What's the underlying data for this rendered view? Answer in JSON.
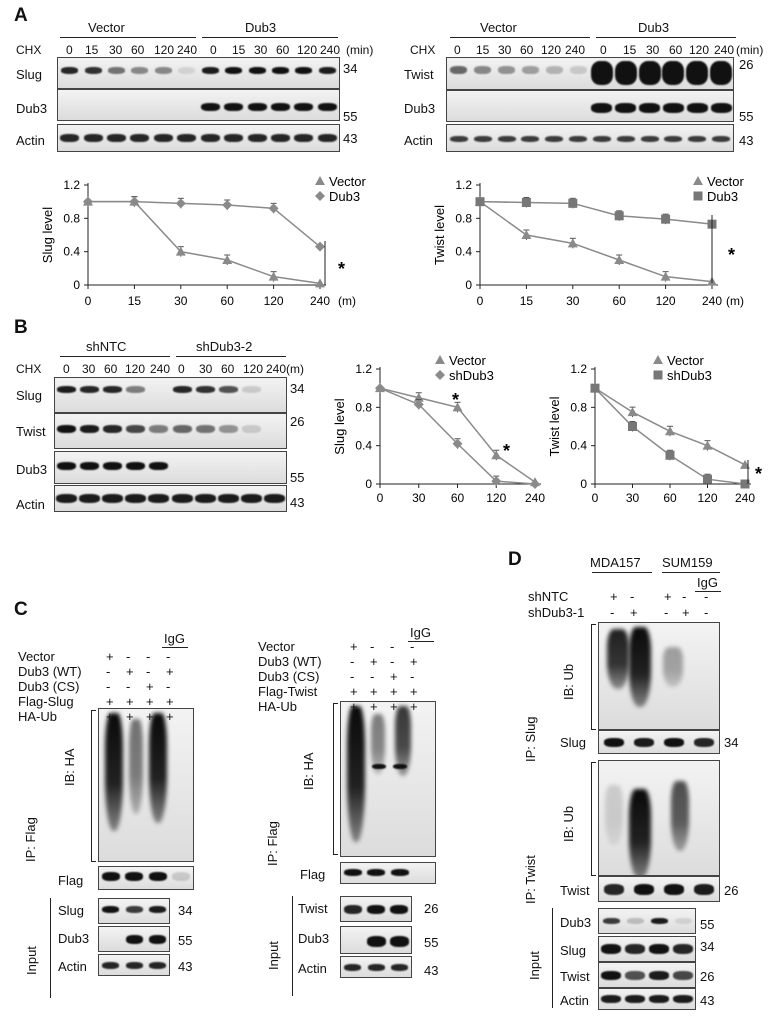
{
  "panel_labels": {
    "a": "A",
    "b": "B",
    "c": "C",
    "d": "D"
  },
  "common": {
    "chx": "CHX",
    "min": "(min)",
    "m": "(m)",
    "m_axis": "(m)",
    "star": "*",
    "mw34": "34",
    "mw26": "26",
    "mw55": "55",
    "mw43": "43",
    "vector": "Vector",
    "dub3": "Dub3",
    "shNTC": "shNTC",
    "shDub3_2": "shDub3-2",
    "plus": "+",
    "minus": "-",
    "igg": "IgG"
  },
  "panelA": {
    "times": [
      "0",
      "15",
      "30",
      "60",
      "120",
      "240"
    ],
    "left_rows": [
      "Slug",
      "Dub3",
      "Actin"
    ],
    "right_rows": [
      "Twist",
      "Dub3",
      "Actin"
    ]
  },
  "panelB": {
    "times": [
      "0",
      "30",
      "60",
      "120",
      "240"
    ],
    "rows": [
      "Slug",
      "Twist",
      "Dub3",
      "Actin"
    ]
  },
  "panelC": {
    "left": {
      "conds": [
        "Vector",
        "Dub3 (WT)",
        "Dub3 (CS)",
        "Flag-Slug",
        "HA-Ub"
      ],
      "signs": [
        [
          "+",
          "-",
          "-",
          "-"
        ],
        [
          "-",
          "+",
          "-",
          "+"
        ],
        [
          "-",
          "-",
          "+",
          "-"
        ],
        [
          "+",
          "+",
          "+",
          "+"
        ],
        [
          "+",
          "+",
          "+",
          "+"
        ]
      ],
      "ib": "IB: HA",
      "ip": "IP: Flag",
      "flag": "Flag",
      "input": "Input",
      "inrows": [
        "Slug",
        "Dub3",
        "Actin"
      ]
    },
    "right": {
      "conds": [
        "Vector",
        "Dub3 (WT)",
        "Dub3 (CS)",
        "Flag-Twist",
        "HA-Ub"
      ],
      "signs": [
        [
          "+",
          "-",
          "-",
          "-"
        ],
        [
          "-",
          "+",
          "-",
          "+"
        ],
        [
          "-",
          "-",
          "+",
          "-"
        ],
        [
          "+",
          "+",
          "+",
          "+"
        ],
        [
          "+",
          "+",
          "+",
          "+"
        ]
      ],
      "ib": "IB: HA",
      "ip": "IP: Flag",
      "flag": "Flag",
      "input": "Input",
      "inrows": [
        "Twist",
        "Dub3",
        "Actin"
      ]
    }
  },
  "panelD": {
    "lines": [
      "MDA157",
      "SUM159"
    ],
    "shNTC": "shNTC",
    "shDub3_1": "shDub3-1",
    "signs": [
      [
        "+",
        "-",
        "+",
        "-"
      ],
      [
        "-",
        "+",
        "-",
        "+"
      ]
    ],
    "ip_slug": "IP: Slug",
    "ip_twist": "IP: Twist",
    "ib": "IB: Ub",
    "slug": "Slug",
    "twist": "Twist",
    "input": "Input",
    "inrows": [
      "Dub3",
      "Slug",
      "Twist",
      "Actin"
    ]
  },
  "chart_data": [
    {
      "type": "line",
      "ylabel": "Slug level",
      "categories": [
        "0",
        "15",
        "30",
        "60",
        "120",
        "240"
      ],
      "x_unit": "(m)",
      "yticks": [
        "0",
        "0.4",
        "0.8",
        "1.2"
      ],
      "ylim": [
        0,
        1.2
      ],
      "series": [
        {
          "name": "Vector",
          "marker": "triangle",
          "values": [
            1.0,
            1.0,
            0.4,
            0.3,
            0.1,
            0.02
          ]
        },
        {
          "name": "Dub3",
          "marker": "diamond",
          "values": [
            1.0,
            1.0,
            0.98,
            0.96,
            0.92,
            0.46
          ]
        }
      ]
    },
    {
      "type": "line",
      "ylabel": "Twist level",
      "categories": [
        "0",
        "15",
        "30",
        "60",
        "120",
        "240"
      ],
      "x_unit": "(m)",
      "yticks": [
        "0",
        "0.4",
        "0.8",
        "1.2"
      ],
      "ylim": [
        0,
        1.2
      ],
      "series": [
        {
          "name": "Vector",
          "marker": "triangle",
          "values": [
            1.0,
            0.6,
            0.5,
            0.3,
            0.1,
            0.04
          ]
        },
        {
          "name": "Dub3",
          "marker": "square",
          "values": [
            1.0,
            0.99,
            0.98,
            0.83,
            0.79,
            0.73
          ]
        }
      ]
    },
    {
      "type": "line",
      "ylabel": "Slug level",
      "categories": [
        "0",
        "30",
        "60",
        "120",
        "240"
      ],
      "yticks": [
        "0",
        "0.4",
        "0.8",
        "1.2"
      ],
      "ylim": [
        0,
        1.2
      ],
      "series": [
        {
          "name": "Vector",
          "marker": "triangle",
          "values": [
            1.0,
            0.9,
            0.8,
            0.3,
            0.02
          ]
        },
        {
          "name": "shDub3",
          "marker": "diamond",
          "values": [
            1.0,
            0.83,
            0.42,
            0.03,
            0.0
          ]
        }
      ]
    },
    {
      "type": "line",
      "ylabel": "Twist level",
      "categories": [
        "0",
        "30",
        "60",
        "120",
        "240"
      ],
      "yticks": [
        "0",
        "0.4",
        "0.8",
        "1.2"
      ],
      "ylim": [
        0,
        1.2
      ],
      "series": [
        {
          "name": "Vector",
          "marker": "triangle",
          "values": [
            1.0,
            0.75,
            0.55,
            0.4,
            0.2
          ]
        },
        {
          "name": "shDub3",
          "marker": "square",
          "values": [
            1.0,
            0.6,
            0.3,
            0.05,
            0.0
          ]
        }
      ]
    }
  ]
}
